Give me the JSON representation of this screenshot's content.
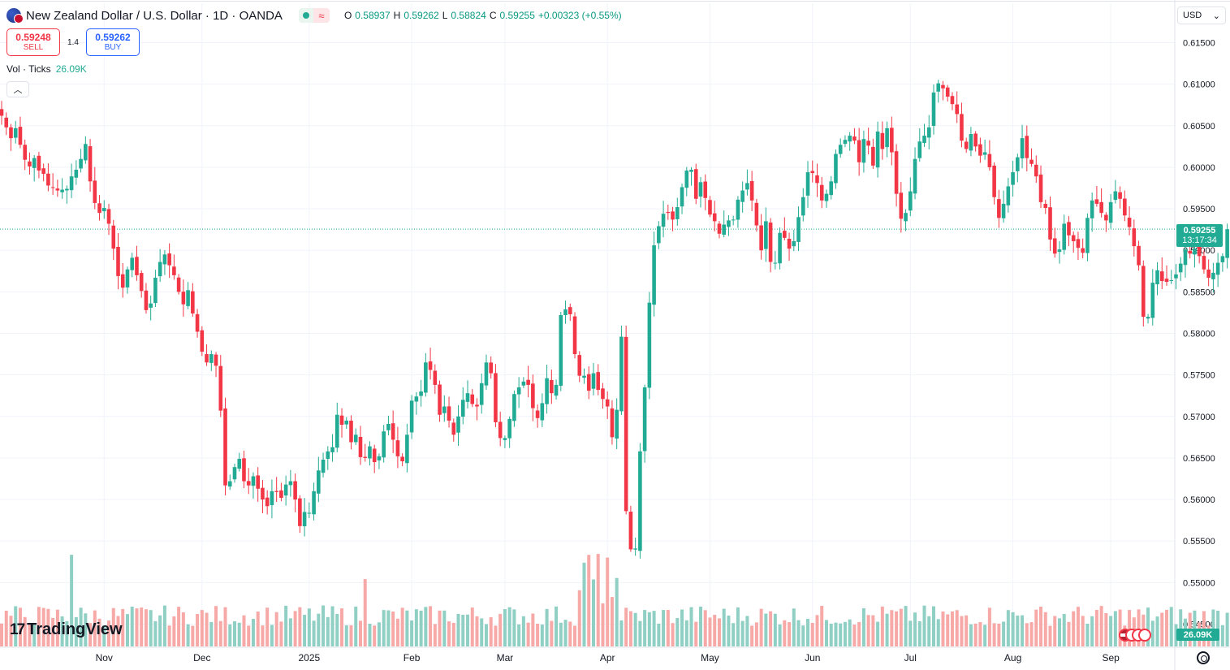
{
  "header": {
    "symbol_title": "New Zealand Dollar / U.S. Dollar · 1D · OANDA",
    "ohlc": {
      "o_label": "O",
      "o": "0.58937",
      "h_label": "H",
      "h": "0.59262",
      "l_label": "L",
      "l": "0.58824",
      "c_label": "C",
      "c": "0.59255",
      "change": "+0.00323 (+0.55%)"
    }
  },
  "trade": {
    "sell_price": "0.59248",
    "sell_label": "SELL",
    "spread": "1.4",
    "buy_price": "0.59262",
    "buy_label": "BUY"
  },
  "volume_indicator": {
    "label": "Vol · Ticks",
    "value": "26.09K"
  },
  "currency": "USD",
  "price_label": {
    "price": "0.59255",
    "countdown": "13:17:34"
  },
  "volume_label": "26.09K",
  "logo_text": "TradingView",
  "colors": {
    "up": "#22ab94",
    "down": "#f23645",
    "vol_up": "#8fcfc4",
    "vol_down": "#f7a9a7",
    "grid": "#f0f3fa"
  },
  "chart_data": {
    "type": "candlestick",
    "title": "New Zealand Dollar / U.S. Dollar · 1D · OANDA",
    "ylim": [
      0.5418,
      0.6178
    ],
    "y_ticks": [
      "0.61500",
      "0.61000",
      "0.60500",
      "0.60000",
      "0.59500",
      "0.59000",
      "0.58500",
      "0.58000",
      "0.57500",
      "0.57000",
      "0.56500",
      "0.56000",
      "0.55500",
      "0.55000",
      "0.54500"
    ],
    "x_labels": [
      "Nov",
      "Dec",
      "2025",
      "Feb",
      "Mar",
      "Apr",
      "May",
      "Jun",
      "Jul",
      "Aug",
      "Sep"
    ],
    "x_label_index": [
      22,
      43,
      66,
      88,
      108,
      130,
      152,
      174,
      195,
      217,
      238
    ],
    "last_price": 0.59255,
    "close": [
      0.6062,
      0.6048,
      0.6035,
      0.6047,
      0.6027,
      0.6009,
      0.6001,
      0.6011,
      0.5996,
      0.5992,
      0.5978,
      0.5976,
      0.5972,
      0.5973,
      0.5974,
      0.5989,
      0.5997,
      0.601,
      0.6028,
      0.5983,
      0.5957,
      0.5945,
      0.5951,
      0.5932,
      0.5902,
      0.5869,
      0.5855,
      0.5877,
      0.5891,
      0.587,
      0.5851,
      0.5828,
      0.5836,
      0.5867,
      0.5886,
      0.5895,
      0.5882,
      0.587,
      0.585,
      0.5835,
      0.5852,
      0.5824,
      0.5802,
      0.5778,
      0.5765,
      0.5775,
      0.5761,
      0.5707,
      0.5617,
      0.5622,
      0.5639,
      0.5649,
      0.5622,
      0.5617,
      0.5628,
      0.5613,
      0.56,
      0.5592,
      0.561,
      0.5609,
      0.5602,
      0.5618,
      0.5622,
      0.56,
      0.5568,
      0.5585,
      0.5584,
      0.561,
      0.5635,
      0.5648,
      0.5658,
      0.5663,
      0.5702,
      0.569,
      0.5695,
      0.5669,
      0.5678,
      0.5651,
      0.565,
      0.5664,
      0.5645,
      0.5652,
      0.5682,
      0.5691,
      0.5672,
      0.5652,
      0.5646,
      0.5678,
      0.5719,
      0.5724,
      0.573,
      0.5765,
      0.5756,
      0.5738,
      0.5702,
      0.5712,
      0.5695,
      0.5678,
      0.57,
      0.572,
      0.5728,
      0.5715,
      0.5712,
      0.574,
      0.5765,
      0.5752,
      0.5693,
      0.5674,
      0.5674,
      0.5697,
      0.5727,
      0.5735,
      0.5742,
      0.5738,
      0.571,
      0.5698,
      0.5716,
      0.5746,
      0.5728,
      0.5738,
      0.5822,
      0.5829,
      0.5823,
      0.5775,
      0.5749,
      0.5749,
      0.5731,
      0.5752,
      0.5732,
      0.5721,
      0.5712,
      0.5675,
      0.5708,
      0.5796,
      0.5586,
      0.554,
      0.5541,
      0.5658,
      0.5735,
      0.5837,
      0.5906,
      0.5929,
      0.5944,
      0.5945,
      0.5937,
      0.5952,
      0.5976,
      0.5996,
      0.5997,
      0.5962,
      0.5982,
      0.5963,
      0.5943,
      0.5935,
      0.592,
      0.5931,
      0.5936,
      0.5937,
      0.5961,
      0.5972,
      0.5981,
      0.596,
      0.593,
      0.59,
      0.5935,
      0.5886,
      0.5885,
      0.5921,
      0.5915,
      0.5902,
      0.5911,
      0.594,
      0.5964,
      0.5994,
      0.5993,
      0.5981,
      0.596,
      0.5968,
      0.5983,
      0.6016,
      0.6027,
      0.6033,
      0.6038,
      0.6032,
      0.6006,
      0.6034,
      0.6026,
      0.6002,
      0.6043,
      0.6022,
      0.6047,
      0.6018,
      0.5968,
      0.5938,
      0.5945,
      0.5971,
      0.601,
      0.6031,
      0.6038,
      0.6048,
      0.609,
      0.6101,
      0.6095,
      0.6085,
      0.6076,
      0.6064,
      0.6032,
      0.6022,
      0.604,
      0.6025,
      0.6014,
      0.6018,
      0.6,
      0.5964,
      0.5939,
      0.5956,
      0.5977,
      0.5994,
      0.6012,
      0.6035,
      0.6011,
      0.6004,
      0.5989,
      0.5958,
      0.5951,
      0.5913,
      0.5896,
      0.5901,
      0.5932,
      0.5918,
      0.5911,
      0.5903,
      0.5897,
      0.5939,
      0.596,
      0.5956,
      0.5945,
      0.5936,
      0.5958,
      0.5971,
      0.5962,
      0.5942,
      0.5928,
      0.5905,
      0.5882,
      0.582,
      0.582,
      0.5861,
      0.5876,
      0.5863,
      0.5862,
      0.5864,
      0.5871,
      0.5884,
      0.5901,
      0.5896,
      0.5902,
      0.5893,
      0.5877,
      0.5867,
      0.5873,
      0.5885,
      0.5893,
      0.59255
    ],
    "volume_scale_max": 160
  }
}
